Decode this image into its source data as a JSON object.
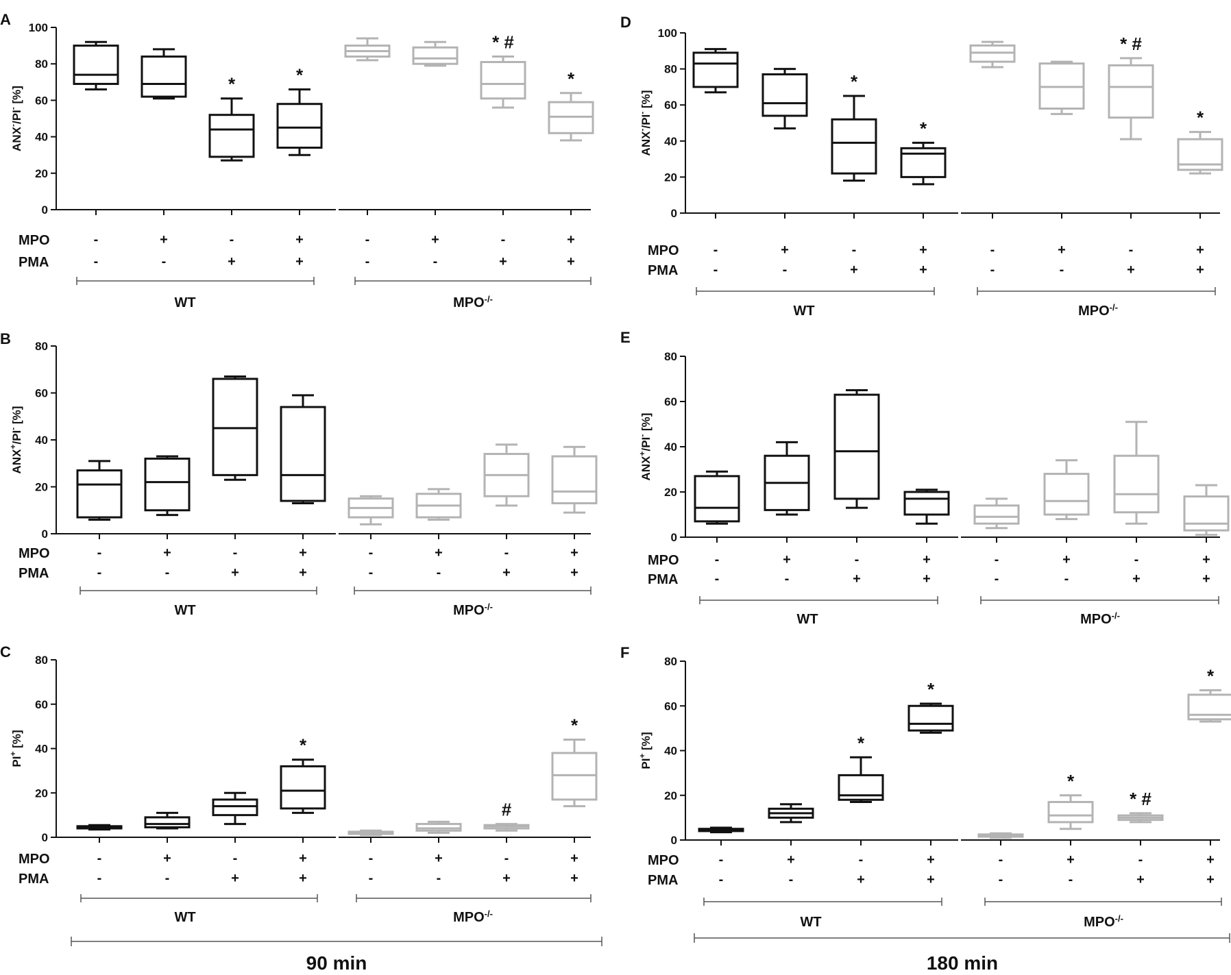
{
  "figure": {
    "time_labels": [
      "90 min",
      "180 min"
    ],
    "colors": {
      "wt": "#111111",
      "ko": "#b3b3b3",
      "axis": "#111111",
      "bracket": "#555555"
    }
  },
  "chart_data": [
    {
      "panel": "A",
      "type": "box",
      "ylabel": "ANX-/PI- [%]",
      "ylabel_parts": {
        "main": "ANX",
        "sup1": "-",
        "mid": "/PI",
        "sup2": "-",
        "tail": " [%]"
      },
      "ylim": [
        0,
        100
      ],
      "yticks": [
        0,
        20,
        40,
        60,
        80,
        100
      ],
      "row_labels": [
        "MPO",
        "PMA"
      ],
      "mpo": [
        "-",
        "+",
        "-",
        "+",
        "-",
        "+",
        "-",
        "+"
      ],
      "pma": [
        "-",
        "-",
        "+",
        "+",
        "-",
        "-",
        "+",
        "+"
      ],
      "groups": [
        {
          "label": "WT",
          "sup": ""
        },
        {
          "label": "MPO",
          "sup": "-/-"
        }
      ],
      "boxes": [
        {
          "min": 66,
          "q1": 69,
          "median": 74,
          "q3": 90,
          "max": 92,
          "marks": ""
        },
        {
          "min": 61,
          "q1": 62,
          "median": 69,
          "q3": 84,
          "max": 88,
          "marks": ""
        },
        {
          "min": 27,
          "q1": 29,
          "median": 44,
          "q3": 52,
          "max": 61,
          "marks": "*"
        },
        {
          "min": 30,
          "q1": 34,
          "median": 45,
          "q3": 58,
          "max": 66,
          "marks": "*"
        },
        {
          "min": 82,
          "q1": 84,
          "median": 87,
          "q3": 90,
          "max": 94,
          "marks": ""
        },
        {
          "min": 79,
          "q1": 80,
          "median": 83,
          "q3": 89,
          "max": 92,
          "marks": ""
        },
        {
          "min": 56,
          "q1": 61,
          "median": 69,
          "q3": 81,
          "max": 84,
          "marks": "* #"
        },
        {
          "min": 38,
          "q1": 42,
          "median": 51,
          "q3": 59,
          "max": 64,
          "marks": "*"
        }
      ]
    },
    {
      "panel": "B",
      "type": "box",
      "ylabel": "ANX+/PI- [%]",
      "ylabel_parts": {
        "main": "ANX",
        "sup1": "+",
        "mid": "/PI",
        "sup2": "-",
        "tail": " [%]"
      },
      "ylim": [
        0,
        80
      ],
      "yticks": [
        0,
        20,
        40,
        60,
        80
      ],
      "row_labels": [
        "MPO",
        "PMA"
      ],
      "mpo": [
        "-",
        "+",
        "-",
        "+",
        "-",
        "+",
        "-",
        "+"
      ],
      "pma": [
        "-",
        "-",
        "+",
        "+",
        "-",
        "-",
        "+",
        "+"
      ],
      "groups": [
        {
          "label": "WT",
          "sup": ""
        },
        {
          "label": "MPO",
          "sup": "-/-"
        }
      ],
      "boxes": [
        {
          "min": 6,
          "q1": 7,
          "median": 21,
          "q3": 27,
          "max": 31,
          "marks": ""
        },
        {
          "min": 8,
          "q1": 10,
          "median": 22,
          "q3": 32,
          "max": 33,
          "marks": ""
        },
        {
          "min": 23,
          "q1": 25,
          "median": 45,
          "q3": 66,
          "max": 67,
          "marks": ""
        },
        {
          "min": 13,
          "q1": 14,
          "median": 25,
          "q3": 54,
          "max": 59,
          "marks": ""
        },
        {
          "min": 4,
          "q1": 7,
          "median": 11,
          "q3": 15,
          "max": 16,
          "marks": ""
        },
        {
          "min": 6,
          "q1": 7,
          "median": 12,
          "q3": 17,
          "max": 19,
          "marks": ""
        },
        {
          "min": 12,
          "q1": 16,
          "median": 25,
          "q3": 34,
          "max": 38,
          "marks": ""
        },
        {
          "min": 9,
          "q1": 13,
          "median": 18,
          "q3": 33,
          "max": 37,
          "marks": ""
        }
      ]
    },
    {
      "panel": "C",
      "type": "box",
      "ylabel": "PI+ [%]",
      "ylabel_parts": {
        "main": "PI",
        "sup1": "+",
        "mid": "",
        "sup2": "",
        "tail": " [%]"
      },
      "ylim": [
        0,
        80
      ],
      "yticks": [
        0,
        20,
        40,
        60,
        80
      ],
      "row_labels": [
        "MPO",
        "PMA"
      ],
      "mpo": [
        "-",
        "+",
        "-",
        "+",
        "-",
        "+",
        "-",
        "+"
      ],
      "pma": [
        "-",
        "-",
        "+",
        "+",
        "-",
        "-",
        "+",
        "+"
      ],
      "groups": [
        {
          "label": "WT",
          "sup": ""
        },
        {
          "label": "MPO",
          "sup": "-/-"
        }
      ],
      "boxes": [
        {
          "min": 3.5,
          "q1": 4,
          "median": 4.5,
          "q3": 5,
          "max": 5.5,
          "marks": ""
        },
        {
          "min": 4,
          "q1": 4.5,
          "median": 6,
          "q3": 9,
          "max": 11,
          "marks": ""
        },
        {
          "min": 6,
          "q1": 10,
          "median": 14,
          "q3": 17,
          "max": 20,
          "marks": ""
        },
        {
          "min": 11,
          "q1": 13,
          "median": 21,
          "q3": 32,
          "max": 35,
          "marks": "*"
        },
        {
          "min": 1,
          "q1": 1.5,
          "median": 2,
          "q3": 2.5,
          "max": 3,
          "marks": ""
        },
        {
          "min": 2,
          "q1": 3,
          "median": 4,
          "q3": 6,
          "max": 7,
          "marks": ""
        },
        {
          "min": 3,
          "q1": 4,
          "median": 5,
          "q3": 5.5,
          "max": 6,
          "marks": "#"
        },
        {
          "min": 14,
          "q1": 17,
          "median": 28,
          "q3": 38,
          "max": 44,
          "marks": "*"
        }
      ]
    },
    {
      "panel": "D",
      "type": "box",
      "ylabel": "ANX-/PI- [%]",
      "ylabel_parts": {
        "main": "ANX",
        "sup1": "-",
        "mid": "/PI",
        "sup2": "-",
        "tail": " [%]"
      },
      "ylim": [
        0,
        100
      ],
      "yticks": [
        0,
        20,
        40,
        60,
        80,
        100
      ],
      "row_labels": [
        "MPO",
        "PMA"
      ],
      "mpo": [
        "-",
        "+",
        "-",
        "+",
        "-",
        "+",
        "-",
        "+"
      ],
      "pma": [
        "-",
        "-",
        "+",
        "+",
        "-",
        "-",
        "+",
        "+"
      ],
      "groups": [
        {
          "label": "WT",
          "sup": ""
        },
        {
          "label": "MPO",
          "sup": "-/-"
        }
      ],
      "boxes": [
        {
          "min": 67,
          "q1": 70,
          "median": 83,
          "q3": 89,
          "max": 91,
          "marks": ""
        },
        {
          "min": 47,
          "q1": 54,
          "median": 61,
          "q3": 77,
          "max": 80,
          "marks": ""
        },
        {
          "min": 18,
          "q1": 22,
          "median": 39,
          "q3": 52,
          "max": 65,
          "marks": "*"
        },
        {
          "min": 16,
          "q1": 20,
          "median": 33,
          "q3": 36,
          "max": 39,
          "marks": "*"
        },
        {
          "min": 81,
          "q1": 84,
          "median": 89,
          "q3": 93,
          "max": 95,
          "marks": ""
        },
        {
          "min": 55,
          "q1": 58,
          "median": 70,
          "q3": 83,
          "max": 84,
          "marks": ""
        },
        {
          "min": 41,
          "q1": 53,
          "median": 70,
          "q3": 82,
          "max": 86,
          "marks": "* #"
        },
        {
          "min": 22,
          "q1": 24,
          "median": 27,
          "q3": 41,
          "max": 45,
          "marks": "*"
        }
      ]
    },
    {
      "panel": "E",
      "type": "box",
      "ylabel": "ANX+/PI- [%]",
      "ylabel_parts": {
        "main": "ANX",
        "sup1": "+",
        "mid": "/PI",
        "sup2": "-",
        "tail": " [%]"
      },
      "ylim": [
        0,
        80
      ],
      "yticks": [
        0,
        20,
        40,
        60,
        80
      ],
      "row_labels": [
        "MPO",
        "PMA"
      ],
      "mpo": [
        "-",
        "+",
        "-",
        "+",
        "-",
        "+",
        "-",
        "+"
      ],
      "pma": [
        "-",
        "-",
        "+",
        "+",
        "-",
        "-",
        "+",
        "+"
      ],
      "groups": [
        {
          "label": "WT",
          "sup": ""
        },
        {
          "label": "MPO",
          "sup": "-/-"
        }
      ],
      "boxes": [
        {
          "min": 6,
          "q1": 7,
          "median": 13,
          "q3": 27,
          "max": 29,
          "marks": ""
        },
        {
          "min": 10,
          "q1": 12,
          "median": 24,
          "q3": 36,
          "max": 42,
          "marks": ""
        },
        {
          "min": 13,
          "q1": 17,
          "median": 38,
          "q3": 63,
          "max": 65,
          "marks": ""
        },
        {
          "min": 6,
          "q1": 10,
          "median": 17,
          "q3": 20,
          "max": 21,
          "marks": ""
        },
        {
          "min": 4,
          "q1": 6,
          "median": 9,
          "q3": 14,
          "max": 17,
          "marks": ""
        },
        {
          "min": 8,
          "q1": 10,
          "median": 16,
          "q3": 28,
          "max": 34,
          "marks": ""
        },
        {
          "min": 6,
          "q1": 11,
          "median": 19,
          "q3": 36,
          "max": 51,
          "marks": ""
        },
        {
          "min": 1,
          "q1": 3,
          "median": 6,
          "q3": 18,
          "max": 23,
          "marks": ""
        }
      ]
    },
    {
      "panel": "F",
      "type": "box",
      "ylabel": "PI+ [%]",
      "ylabel_parts": {
        "main": "PI",
        "sup1": "+",
        "mid": "",
        "sup2": "",
        "tail": " [%]"
      },
      "ylim": [
        0,
        80
      ],
      "yticks": [
        0,
        20,
        40,
        60,
        80
      ],
      "row_labels": [
        "MPO",
        "PMA"
      ],
      "mpo": [
        "-",
        "+",
        "-",
        "+",
        "-",
        "+",
        "-",
        "+"
      ],
      "pma": [
        "-",
        "-",
        "+",
        "+",
        "-",
        "-",
        "+",
        "+"
      ],
      "groups": [
        {
          "label": "WT",
          "sup": ""
        },
        {
          "label": "MPO",
          "sup": "-/-"
        }
      ],
      "boxes": [
        {
          "min": 3.5,
          "q1": 4,
          "median": 4.5,
          "q3": 5,
          "max": 5.5,
          "marks": ""
        },
        {
          "min": 8,
          "q1": 10,
          "median": 12,
          "q3": 14,
          "max": 16,
          "marks": ""
        },
        {
          "min": 17,
          "q1": 18,
          "median": 20,
          "q3": 29,
          "max": 37,
          "marks": "*"
        },
        {
          "min": 48,
          "q1": 49,
          "median": 52,
          "q3": 60,
          "max": 61,
          "marks": "*"
        },
        {
          "min": 1,
          "q1": 1.5,
          "median": 2,
          "q3": 2.5,
          "max": 3,
          "marks": ""
        },
        {
          "min": 5,
          "q1": 8,
          "median": 11,
          "q3": 17,
          "max": 20,
          "marks": "*"
        },
        {
          "min": 8,
          "q1": 9,
          "median": 10,
          "q3": 11,
          "max": 12,
          "marks": "* #"
        },
        {
          "min": 53,
          "q1": 54,
          "median": 56,
          "q3": 65,
          "max": 67,
          "marks": "*"
        }
      ]
    }
  ]
}
